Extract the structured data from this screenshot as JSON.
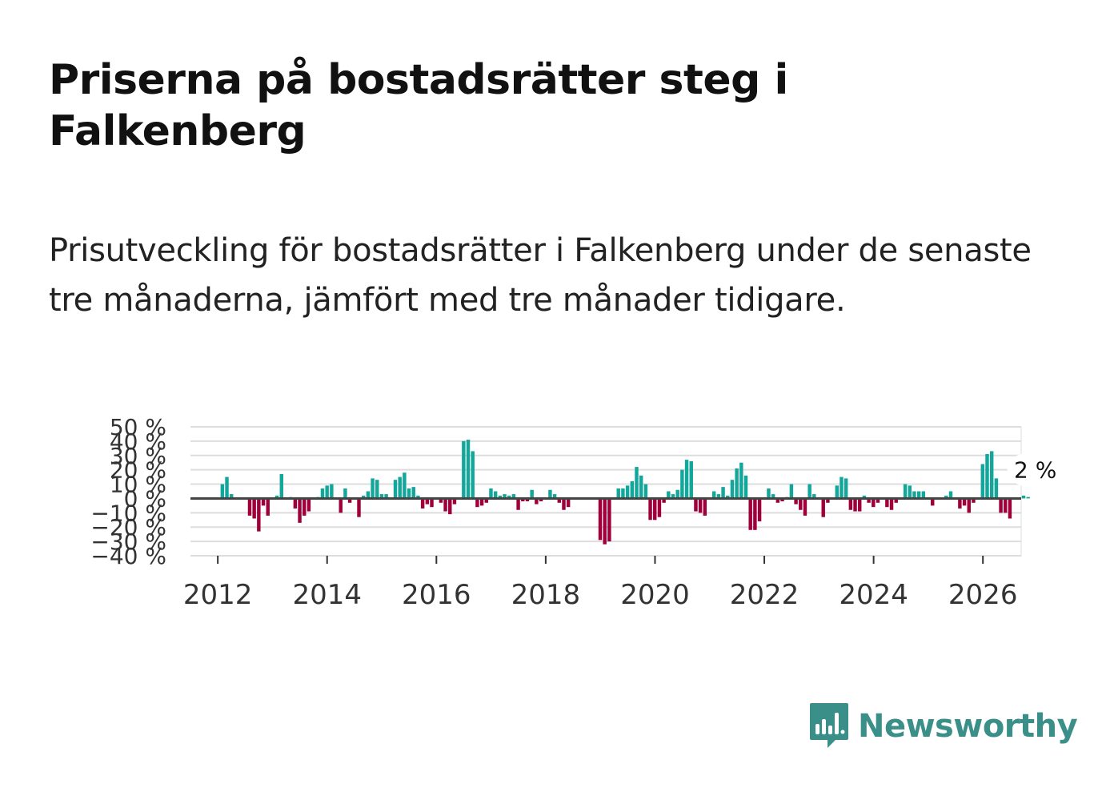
{
  "title": "Priserna på bostadsrätter steg i Falkenberg",
  "subtitle": "Prisutveckling för bostadsrätter i Falkenberg under de senaste tre månaderna, jämfört med tre månader tidigare.",
  "brand": {
    "name": "Newsworthy",
    "color": "#3a8f88"
  },
  "colors": {
    "positive": "#13a69a",
    "negative": "#a0003a",
    "grid": "#dddddd",
    "zero": "#444444"
  },
  "chart_data": {
    "type": "bar",
    "title": "",
    "xlabel": "",
    "ylabel": "",
    "ylim": [
      -40,
      50
    ],
    "xlim": [
      2011.5,
      2026.7
    ],
    "y_ticks": [
      50,
      40,
      30,
      20,
      10,
      0,
      -10,
      -20,
      -30,
      -40
    ],
    "y_tick_labels": [
      "50 %",
      "40 %",
      "30 %",
      "20 %",
      "10 %",
      "0 %",
      "−10 %",
      "−20 %",
      "−30 %",
      "−40 %"
    ],
    "x_ticks": [
      2012,
      2014,
      2016,
      2018,
      2020,
      2022,
      2024,
      2026
    ],
    "x_tick_labels": [
      "2012",
      "2014",
      "2016",
      "2018",
      "2020",
      "2022",
      "2024",
      "2026"
    ],
    "start": 2012.0,
    "step": 0.0833,
    "values": [
      0,
      10,
      15,
      3,
      0,
      0,
      0,
      -12,
      -14,
      -23,
      -5,
      -12,
      0,
      2,
      17,
      0,
      1,
      -7,
      -17,
      -12,
      -9,
      0,
      1,
      7,
      9,
      10,
      0,
      -10,
      7,
      -3,
      0,
      -13,
      2,
      5,
      14,
      13,
      3,
      3,
      0,
      13,
      15,
      18,
      7,
      8,
      2,
      -7,
      -4,
      -6,
      0,
      -3,
      -9,
      -11,
      -4,
      0,
      40,
      41,
      33,
      -6,
      -5,
      -3,
      7,
      5,
      2,
      3,
      2,
      3,
      -8,
      -2,
      -2,
      6,
      -4,
      -2,
      0,
      6,
      3,
      -3,
      -8,
      -6,
      0,
      0,
      0,
      0,
      0,
      0,
      -29,
      -32,
      -30,
      0,
      7,
      7,
      9,
      12,
      22,
      16,
      10,
      -15,
      -15,
      -13,
      -3,
      5,
      3,
      6,
      20,
      27,
      26,
      -9,
      -10,
      -12,
      0,
      5,
      3,
      8,
      2,
      13,
      21,
      25,
      16,
      -22,
      -22,
      -16,
      0,
      7,
      3,
      -3,
      -2,
      1,
      10,
      -4,
      -8,
      -12,
      10,
      3,
      0,
      -13,
      -3,
      0,
      9,
      15,
      14,
      -8,
      -9,
      -9,
      2,
      -3,
      -6,
      -3,
      0,
      -6,
      -8,
      -3,
      0,
      10,
      9,
      5,
      5,
      5,
      0,
      -5,
      0,
      0,
      2,
      5,
      0,
      -7,
      -5,
      -10,
      -3,
      0,
      24,
      31,
      33,
      14,
      -10,
      -10,
      -14,
      0,
      0,
      2,
      1
    ]
  },
  "annotation": {
    "label": "2 %"
  }
}
